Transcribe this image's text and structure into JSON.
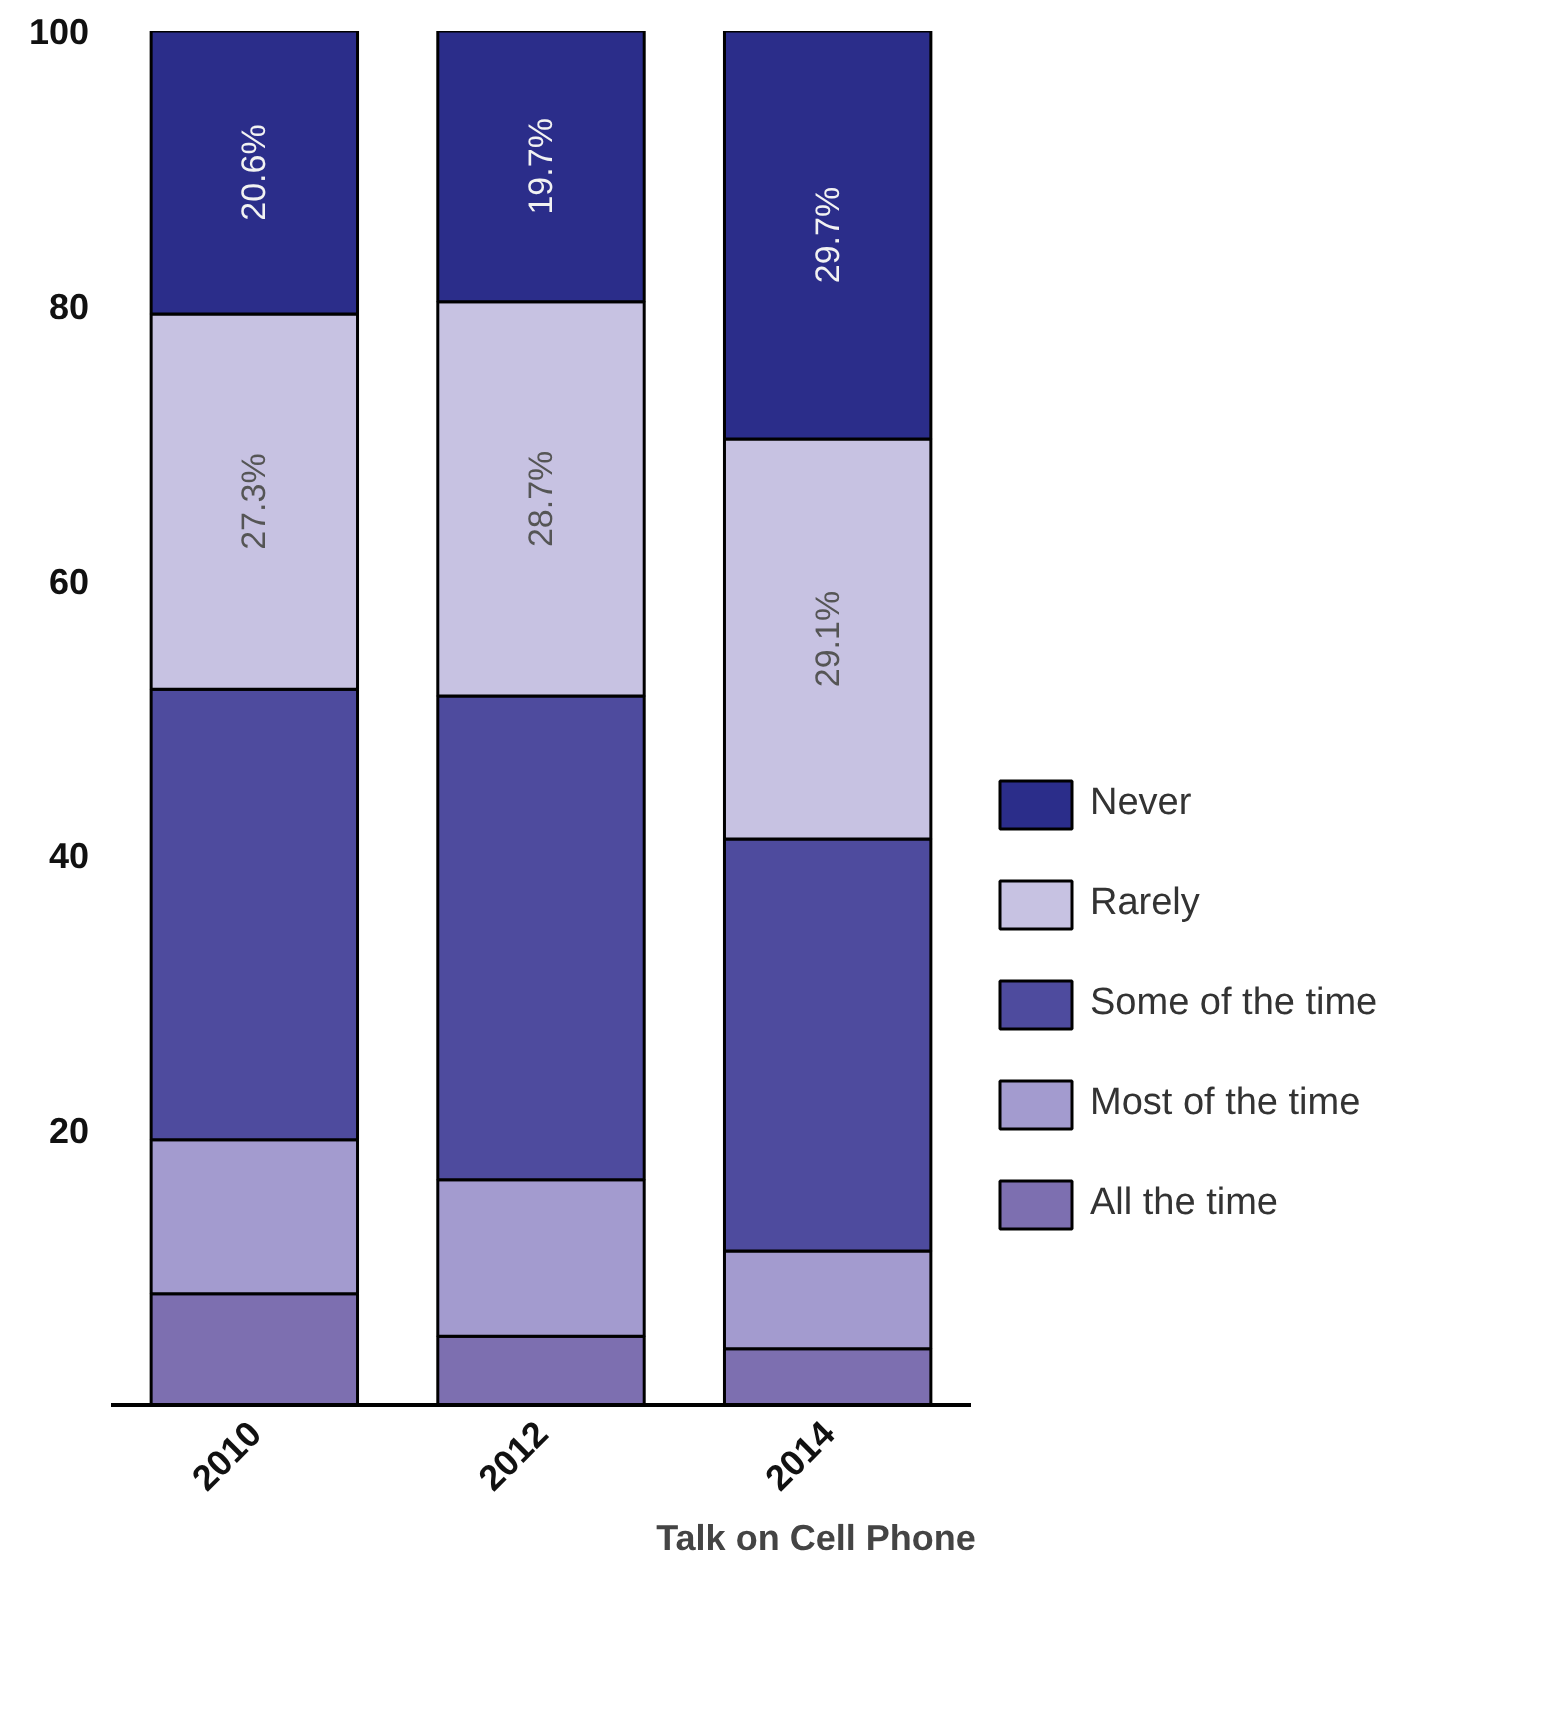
{
  "chart_data": {
    "type": "bar",
    "stacked": true,
    "xlabel": "Talk on Cell Phone",
    "categories": [
      "2010",
      "2012",
      "2014"
    ],
    "ylim": [
      0,
      100
    ],
    "yticks": [
      20,
      40,
      60,
      80,
      100
    ],
    "grid": false,
    "legend": "right",
    "series": [
      {
        "name": "All the time",
        "color": "#7d6fb0",
        "values": [
          8.1,
          5.0,
          4.1
        ]
      },
      {
        "name": "Most of the time",
        "color": "#a39bcf",
        "values": [
          11.2,
          11.4,
          7.1
        ]
      },
      {
        "name": "Some of the time",
        "color": "#4e4b9e",
        "values": [
          32.8,
          35.2,
          30.0
        ]
      },
      {
        "name": "Rarely",
        "color": "#c7c2e2",
        "values": [
          27.3,
          28.7,
          29.1
        ],
        "value_labels": [
          "27.3%",
          "28.7%",
          "29.1%"
        ]
      },
      {
        "name": "Never",
        "color": "#2b2d8a",
        "values": [
          20.6,
          19.7,
          29.7
        ],
        "value_labels": [
          "20.6%",
          "19.7%",
          "29.7%"
        ]
      }
    ]
  }
}
